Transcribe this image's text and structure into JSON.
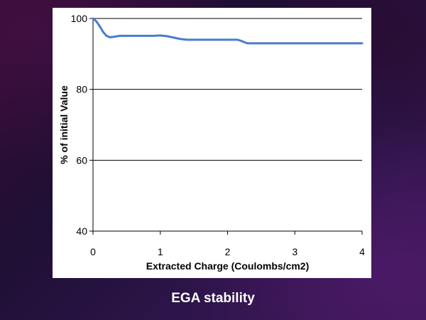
{
  "caption": "EGA stability",
  "colors": {
    "line": "#4a7bd0",
    "grid": "#000000",
    "panel": "#ffffff"
  },
  "chart_data": {
    "type": "line",
    "title": "",
    "xlabel": "Extracted Charge (Coulombs/cm2)",
    "ylabel": "% of initial Value",
    "xlim": [
      0,
      4
    ],
    "ylim": [
      40,
      100
    ],
    "x_ticks": [
      "0",
      "1",
      "2",
      "3",
      "4"
    ],
    "y_ticks": [
      "40",
      "60",
      "80",
      "100"
    ],
    "grid": "horizontal",
    "series": [
      {
        "x": [
          0,
          0.05,
          0.1,
          0.15,
          0.2,
          0.25,
          0.3,
          0.4,
          0.5,
          0.7,
          0.9,
          1.0,
          1.1,
          1.2,
          1.3,
          1.4,
          1.6,
          1.8,
          2.0,
          2.15,
          2.2,
          2.25,
          2.3,
          2.4,
          2.6,
          2.8,
          3.0,
          3.5,
          4.0
        ],
        "y": [
          100,
          99.2,
          97.8,
          96.2,
          95.1,
          94.7,
          94.8,
          95.1,
          95.1,
          95.1,
          95.1,
          95.2,
          95.0,
          94.6,
          94.2,
          94.0,
          94.0,
          94.0,
          94.0,
          94.0,
          93.7,
          93.3,
          93.0,
          93.0,
          93.0,
          93.0,
          93.0,
          93.0,
          93.0
        ]
      }
    ]
  }
}
